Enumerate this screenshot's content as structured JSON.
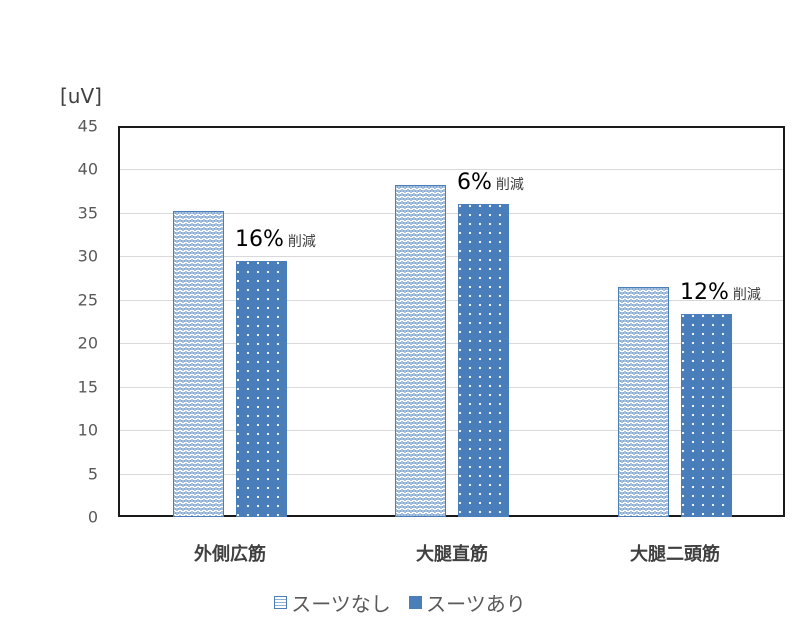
{
  "chart_data": {
    "type": "bar",
    "title": "",
    "unit_label": "[uV]",
    "xlabel": "",
    "ylabel": "[uV]",
    "ylim": [
      0,
      45
    ],
    "yticks": [
      0,
      5,
      10,
      15,
      20,
      25,
      30,
      35,
      40,
      45
    ],
    "grid": true,
    "legend_position": "bottom",
    "categories": [
      "外側広筋",
      "大腿直筋",
      "大腿二頭筋"
    ],
    "series": [
      {
        "name": "スーツなし",
        "values": [
          35.2,
          38.2,
          26.5
        ],
        "color": "#4a7ebb",
        "pattern": "wave"
      },
      {
        "name": "スーツあり",
        "values": [
          29.5,
          36.0,
          23.4
        ],
        "color": "#4a7ebb",
        "pattern": "dots"
      }
    ],
    "annotations": [
      {
        "category": "外側広筋",
        "percent": "16%",
        "text": "削減"
      },
      {
        "category": "大腿直筋",
        "percent": "6%",
        "text": "削減"
      },
      {
        "category": "大腿二頭筋",
        "percent": "12%",
        "text": "削減"
      }
    ]
  }
}
